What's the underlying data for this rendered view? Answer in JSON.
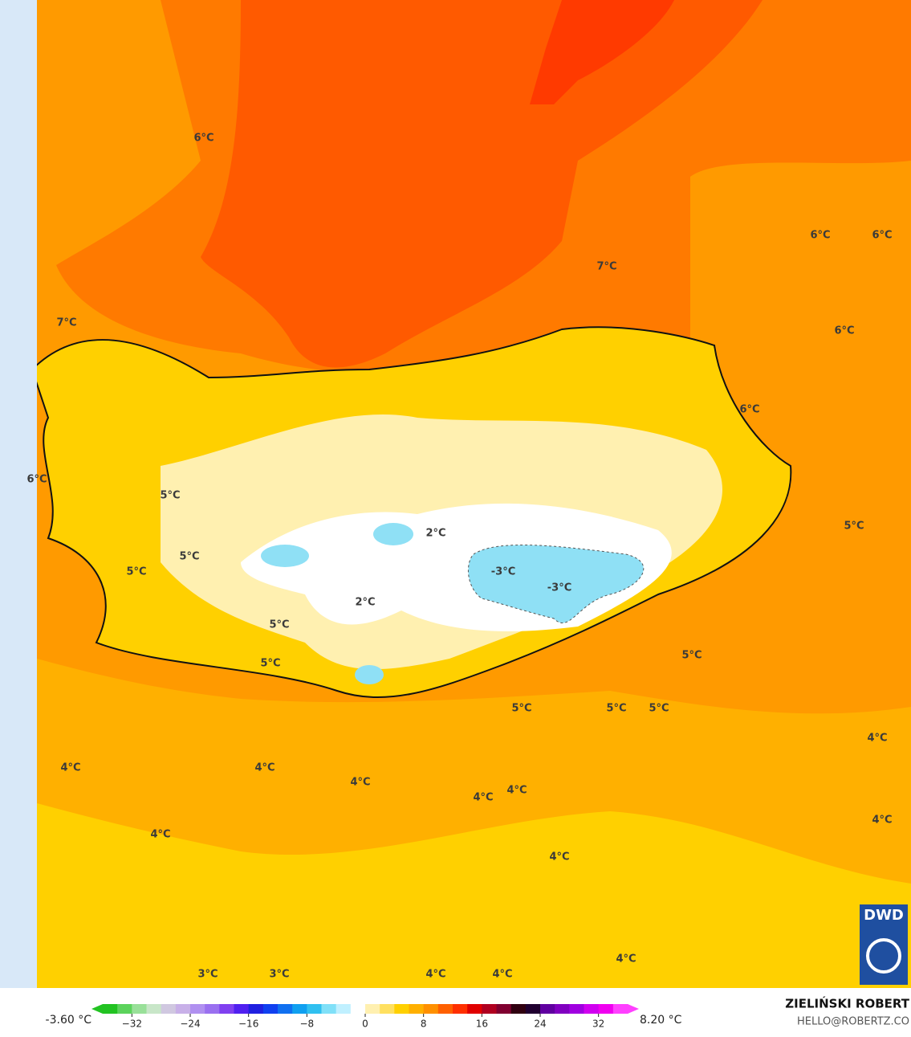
{
  "map_labels": [
    "6°C",
    "6°C",
    "6°C",
    "7°C",
    "7°C",
    "6°C",
    "6°C",
    "6°C",
    "5°C",
    "2°C",
    "5°C",
    "5°C",
    "5°C",
    "-3°C",
    "-3°C",
    "2°C",
    "5°C",
    "5°C",
    "5°C",
    "5°C",
    "5°C",
    "5°C",
    "4°C",
    "4°C",
    "4°C",
    "4°C",
    "4°C",
    "4°C",
    "4°C",
    "4°C",
    "4°C",
    "4°C",
    "3°C",
    "3°C",
    "4°C",
    "4°C"
  ],
  "logo": "DWD",
  "colorbar": {
    "min_label": "-3.60 °C",
    "max_label": "8.20 °C",
    "xlim": [
      -36,
      36
    ],
    "ticks": [
      {
        "value": -32,
        "label": "−32"
      },
      {
        "value": -24,
        "label": "−24"
      },
      {
        "value": -16,
        "label": "−16"
      },
      {
        "value": -8,
        "label": "−8"
      },
      0,
      8,
      16,
      24,
      32
    ],
    "colors": [
      "#22c322",
      "#5cd35c",
      "#99e099",
      "#c8e6c8",
      "#d0c8e0",
      "#c8b0e8",
      "#b090f0",
      "#9a70f0",
      "#8040f0",
      "#5020f0",
      "#2020e0",
      "#1040f0",
      "#1070f0",
      "#10a0f0",
      "#30c0f0",
      "#80e0f8",
      "#c0f0ff",
      "#ffffff",
      "#fff0b0",
      "#ffe060",
      "#ffd000",
      "#ffb000",
      "#ff9000",
      "#ff6000",
      "#ff3000",
      "#e00000",
      "#b00020",
      "#800030",
      "#300010",
      "#200030",
      "#6000a0",
      "#8000c0",
      "#a000e0",
      "#d000f0",
      "#f000f0",
      "#ff40ff"
    ]
  },
  "credits": {
    "name": "ZIELIŃSKI ROBERT",
    "email": "HELLO@ROBERTZ.CO"
  }
}
